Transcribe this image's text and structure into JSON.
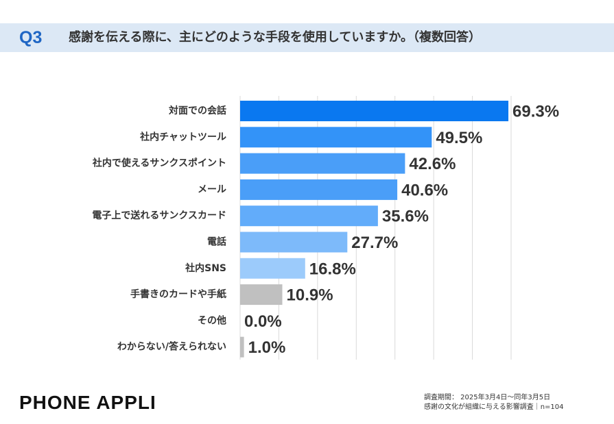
{
  "header": {
    "question_number": "Q3",
    "question_text": "感謝を伝える際に、主にどのような手段を使用していますか。（複数回答）"
  },
  "chart_data": {
    "type": "bar",
    "orientation": "horizontal",
    "categories": [
      "対面での会話",
      "社内チャットツール",
      "社内で使えるサンクスポイント",
      "メール",
      "電子上で送れるサンクスカード",
      "電話",
      "社内SNS",
      "手書きのカードや手紙",
      "その他",
      "わからない/答えられない"
    ],
    "values": [
      69.3,
      49.5,
      42.6,
      40.6,
      35.6,
      27.7,
      16.8,
      10.9,
      0.0,
      1.0
    ],
    "value_labels": [
      "69.3%",
      "49.5%",
      "42.6%",
      "40.6%",
      "35.6%",
      "27.7%",
      "16.8%",
      "10.9%",
      "0.0%",
      "1.0%"
    ],
    "unit": "%",
    "xlim": [
      0,
      70
    ],
    "grid": true,
    "bar_colors": [
      "#0a78f0",
      "#3393f8",
      "#4a9ef8",
      "#4a9ef8",
      "#62acfa",
      "#7dbafa",
      "#9ccbfb",
      "#c0c0c0",
      "#c0c0c0",
      "#c0c0c0"
    ]
  },
  "brand": {
    "logo_text": "PHONE APPLI"
  },
  "footnote": {
    "line1": "調査期間： 2025年3月4日～同年3月5日",
    "line2": "感謝の文化が組織に与える影響調査｜n=104"
  }
}
